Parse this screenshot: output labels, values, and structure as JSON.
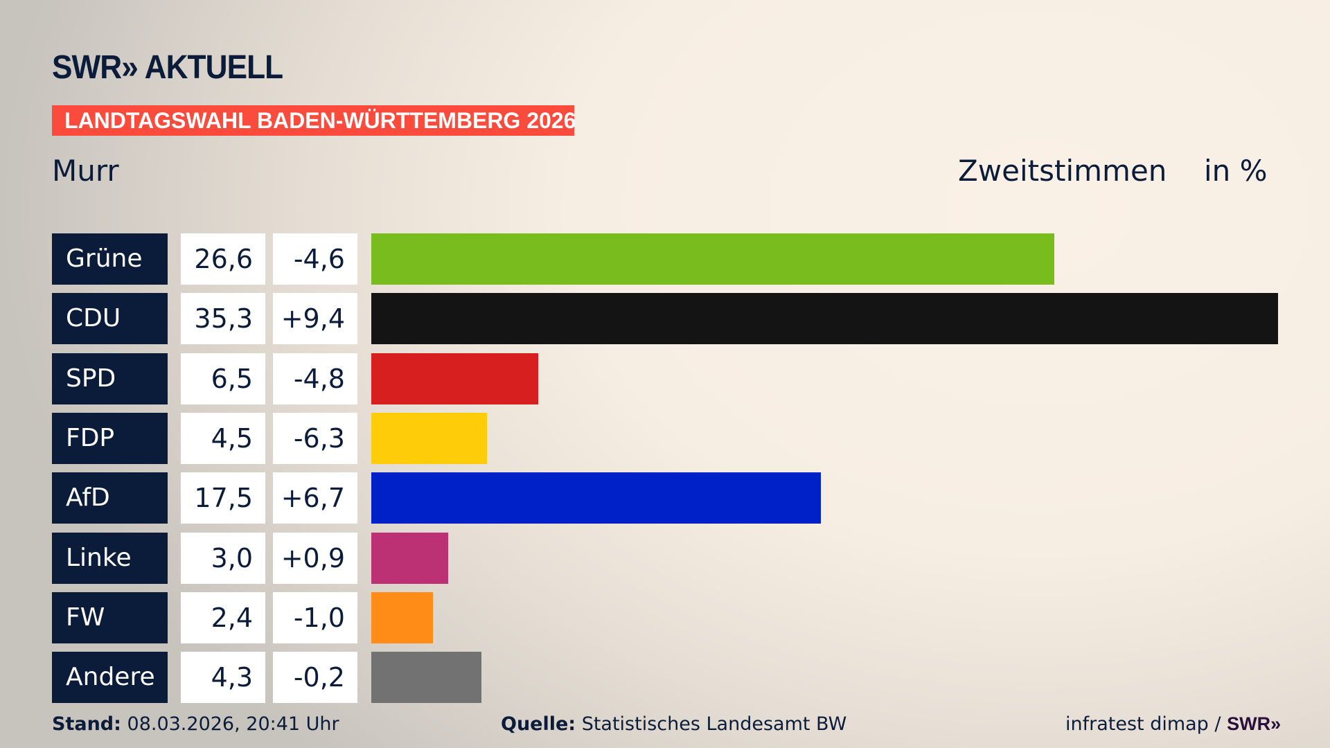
{
  "header": {
    "logo": "SWR» AKTUELL",
    "banner": "LANDTAGSWAHL BADEN-WÜRTTEMBERG 2026",
    "region": "Murr",
    "metric": "Zweitstimmen",
    "unit": "in %"
  },
  "chart_data": {
    "type": "bar",
    "orientation": "horizontal",
    "categories": [
      "Grüne",
      "CDU",
      "SPD",
      "FDP",
      "AfD",
      "Linke",
      "FW",
      "Andere"
    ],
    "values": [
      26.6,
      35.3,
      6.5,
      4.5,
      17.5,
      3.0,
      2.4,
      4.3
    ],
    "value_labels": [
      "26,6",
      "35,3",
      "6,5",
      "4,5",
      "17,5",
      "3,0",
      "2,4",
      "4,3"
    ],
    "changes": [
      -4.6,
      9.4,
      -4.8,
      -6.3,
      6.7,
      0.9,
      -1.0,
      -0.2
    ],
    "change_labels": [
      "-4,6",
      "+9,4",
      "-4,8",
      "-6,3",
      "+6,7",
      "+0,9",
      "-1,0",
      "-0,2"
    ],
    "colors": [
      "#79bc1e",
      "#141414",
      "#d81f1f",
      "#ffcc0a",
      "#0020c8",
      "#bc3174",
      "#ff8c16",
      "#727272"
    ],
    "xlabel": "",
    "ylabel": "",
    "grid": false
  },
  "footer": {
    "stand_label": "Stand:",
    "stand_value": "08.03.2026, 20:41 Uhr",
    "source_label": "Quelle:",
    "source_value": "Statistisches Landesamt BW",
    "credit": "infratest dimap /",
    "credit_logo": "SWR»"
  }
}
